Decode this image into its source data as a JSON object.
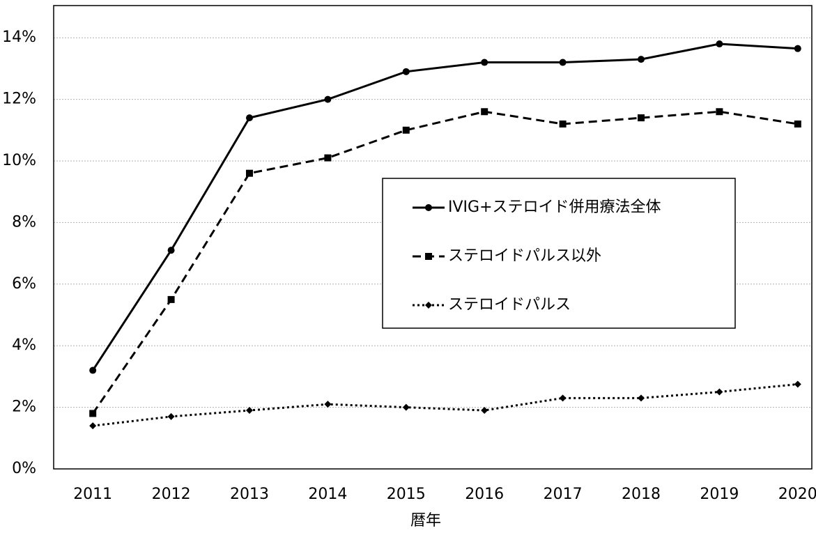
{
  "chart_data": {
    "type": "line",
    "x_label": "暦年",
    "categories": [
      "2011",
      "2012",
      "2013",
      "2014",
      "2015",
      "2016",
      "2017",
      "2018",
      "2019",
      "2020"
    ],
    "series": [
      {
        "name": "IVIG+ステロイド併用療法全体",
        "color": "#000000",
        "marker": "circle",
        "dash": "solid",
        "values": [
          3.2,
          7.1,
          11.4,
          12.0,
          12.9,
          13.2,
          13.2,
          13.3,
          13.8,
          13.65
        ]
      },
      {
        "name": "ステロイドパルス以外",
        "color": "#000000",
        "marker": "square",
        "dash": "dashed",
        "values": [
          1.8,
          5.5,
          9.6,
          10.1,
          11.0,
          11.6,
          11.2,
          11.4,
          11.6,
          11.2
        ]
      },
      {
        "name": "ステロイドパルス",
        "color": "#000000",
        "marker": "diamond",
        "dash": "dotted",
        "values": [
          1.4,
          1.7,
          1.9,
          2.1,
          2.0,
          1.9,
          2.3,
          2.3,
          2.5,
          2.75
        ]
      }
    ],
    "ylim": [
      0,
      15
    ],
    "yticks": [
      {
        "value": 0,
        "label": "0%"
      },
      {
        "value": 2,
        "label": "2%"
      },
      {
        "value": 4,
        "label": "4%"
      },
      {
        "value": 6,
        "label": "6%"
      },
      {
        "value": 8,
        "label": "8%"
      },
      {
        "value": 10,
        "label": "10%"
      },
      {
        "value": 12,
        "label": "12%"
      },
      {
        "value": 14,
        "label": "14%"
      }
    ],
    "grid": true
  }
}
